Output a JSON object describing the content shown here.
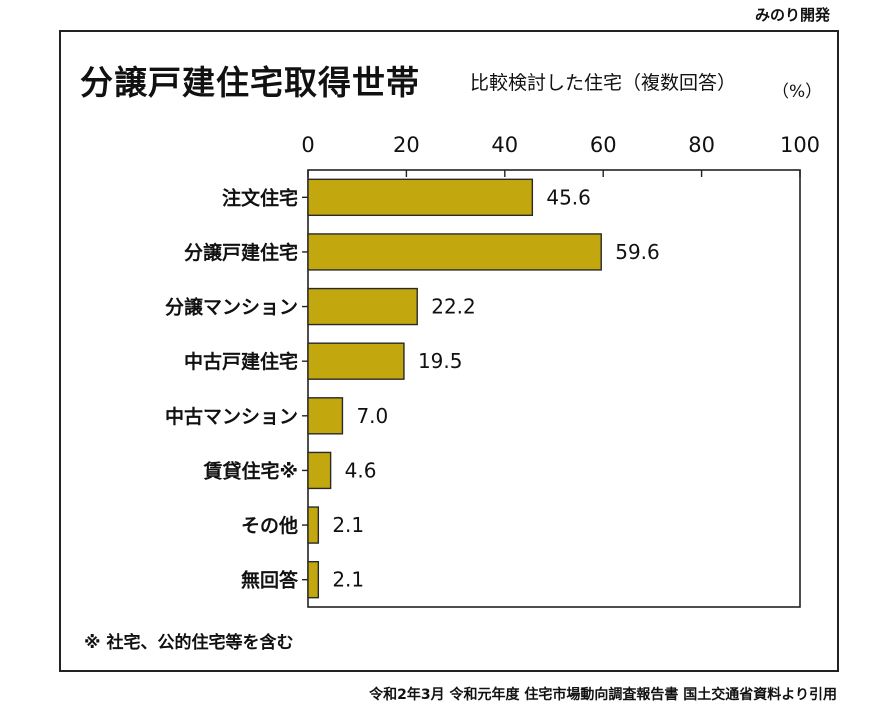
{
  "credit": "みのり開発",
  "title": "分譲戸建住宅取得世帯",
  "subtitle": "比較検討した住宅（複数回答）",
  "unit": "（%）",
  "footnote": "※ 社宅、公的住宅等を含む",
  "source": "令和2年3月 令和元年度 住宅市場動向調査報告書 国土交通省資料より引用",
  "colors": {
    "bar": "#c2a70e",
    "bar_stroke": "#2a2a2a",
    "frame": "#222222"
  },
  "chart_data": {
    "type": "bar",
    "orientation": "horizontal",
    "categories": [
      "注文住宅",
      "分譲戸建住宅",
      "分譲マンション",
      "中古戸建住宅",
      "中古マンション",
      "賃貸住宅※",
      "その他",
      "無回答"
    ],
    "values": [
      45.6,
      59.6,
      22.2,
      19.5,
      7.0,
      4.6,
      2.1,
      2.1
    ],
    "value_labels": [
      "45.6",
      "59.6",
      "22.2",
      "19.5",
      "7.0",
      "4.6",
      "2.1",
      "2.1"
    ],
    "xlim": [
      0,
      100
    ],
    "x_ticks": [
      0,
      20,
      40,
      60,
      80,
      100
    ],
    "x_tick_position": "top",
    "grid": false
  }
}
